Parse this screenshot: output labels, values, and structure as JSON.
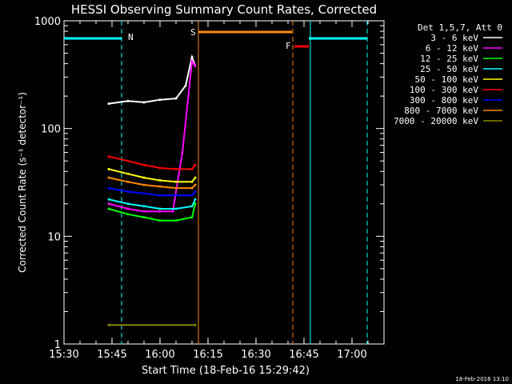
{
  "chart_data": {
    "type": "line",
    "title": "HESSI Observing Summary Count Rates, Corrected",
    "xlabel": "Start Time (18-Feb-16 15:29:42)",
    "ylabel": "Corrected Count Rate (s⁻¹ detector⁻¹)",
    "yscale": "log",
    "ylim": [
      1,
      1000
    ],
    "yticks": [
      1,
      10,
      100,
      1000
    ],
    "ytick_labels": [
      "1",
      "10",
      "100",
      "1000"
    ],
    "xlim": [
      "15:30",
      "17:10"
    ],
    "xticks": [
      "15:30",
      "15:45",
      "16:00",
      "16:15",
      "16:30",
      "16:45",
      "17:00"
    ],
    "timestamp": "18-Feb-2016 13:10",
    "legend_title": "Det 1,5,7, Att 0",
    "legend_position": "top-right",
    "series": [
      {
        "name": "3 - 6 keV",
        "color": "#ffffff",
        "x": [
          "15:44",
          "15:50",
          "15:55",
          "16:00",
          "16:05",
          "16:08",
          "16:10",
          "16:11"
        ],
        "y": [
          170,
          180,
          175,
          185,
          190,
          250,
          460,
          380
        ]
      },
      {
        "name": "6 - 12 keV",
        "color": "#ff00ff",
        "x": [
          "15:44",
          "15:50",
          "15:55",
          "16:00",
          "16:04",
          "16:07",
          "16:10",
          "16:11"
        ],
        "y": [
          20,
          18,
          17,
          17,
          17,
          60,
          420,
          380
        ]
      },
      {
        "name": "12 - 25 keV",
        "color": "#00ff00",
        "x": [
          "15:44",
          "15:50",
          "15:55",
          "16:00",
          "16:05",
          "16:10",
          "16:11"
        ],
        "y": [
          18,
          16,
          15,
          14,
          14,
          15,
          20
        ]
      },
      {
        "name": "25 - 50 keV",
        "color": "#00ffff",
        "x": [
          "15:44",
          "15:50",
          "15:55",
          "16:00",
          "16:05",
          "16:10",
          "16:11"
        ],
        "y": [
          22,
          20,
          19,
          18,
          18,
          19,
          22
        ]
      },
      {
        "name": "50 - 100 keV",
        "color": "#ffff00",
        "x": [
          "15:44",
          "15:50",
          "15:55",
          "16:00",
          "16:05",
          "16:10",
          "16:11"
        ],
        "y": [
          42,
          38,
          35,
          33,
          32,
          32,
          35
        ]
      },
      {
        "name": "100 - 300 keV",
        "color": "#ff0000",
        "x": [
          "15:44",
          "15:50",
          "15:55",
          "16:00",
          "16:05",
          "16:10",
          "16:11"
        ],
        "y": [
          55,
          50,
          46,
          43,
          42,
          42,
          46
        ]
      },
      {
        "name": "300 - 800 keV",
        "color": "#0000ff",
        "x": [
          "15:44",
          "15:50",
          "15:55",
          "16:00",
          "16:05",
          "16:10",
          "16:11"
        ],
        "y": [
          28,
          26,
          25,
          24,
          24,
          24,
          26
        ]
      },
      {
        "name": "800 - 7000 keV",
        "color": "#ff8800",
        "x": [
          "15:44",
          "15:50",
          "15:55",
          "16:00",
          "16:05",
          "16:10",
          "16:11"
        ],
        "y": [
          35,
          32,
          30,
          29,
          28,
          28,
          30
        ]
      },
      {
        "name": "7000 - 20000 keV",
        "color": "#888800",
        "x": [
          "15:44",
          "16:11"
        ],
        "y": [
          1.5,
          1.5
        ]
      }
    ],
    "annotations": [
      {
        "label": "N",
        "color": "#00ffff"
      },
      {
        "label": "S",
        "color": "#ff8800"
      },
      {
        "label": "F",
        "color": "#ff0000"
      }
    ]
  }
}
